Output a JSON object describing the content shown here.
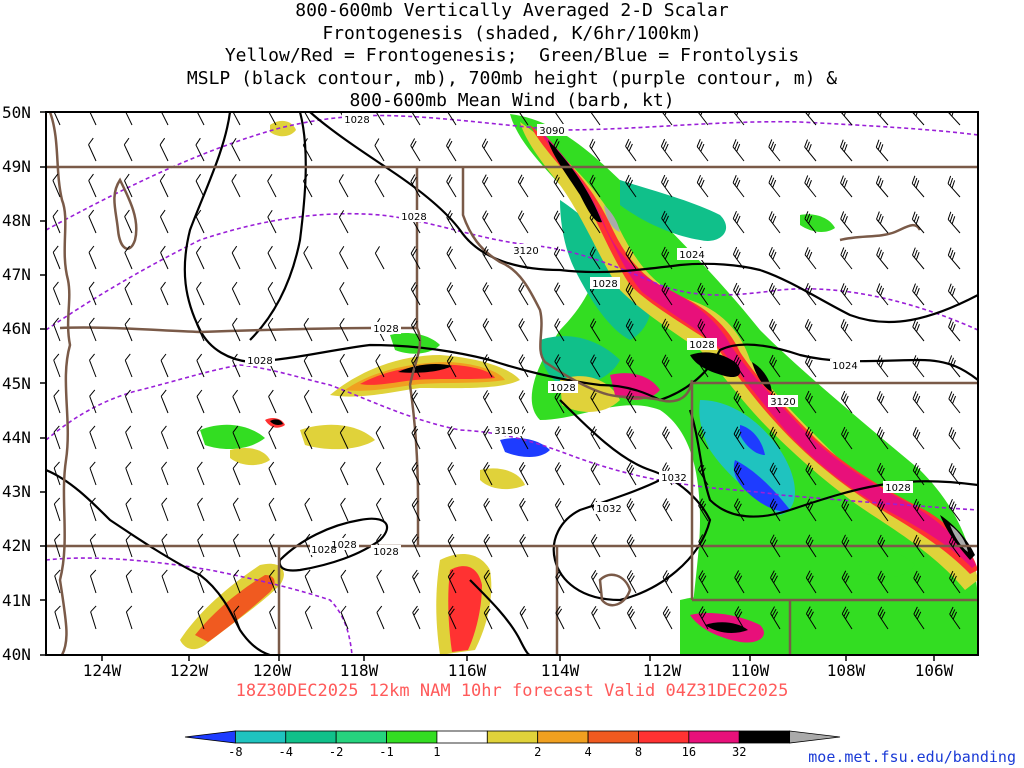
{
  "title_lines": [
    "800-600mb Vertically Averaged 2-D Scalar",
    "Frontogenesis (shaded, K/6hr/100km)",
    "Yellow/Red = Frontogenesis;  Green/Blue = Frontolysis",
    "MSLP (black contour, mb), 700mb height (purple contour, m) &",
    "800-600mb Mean Wind (barb, kt)"
  ],
  "footer": "18Z30DEC2025 12km NAM 10hr forecast Valid 04Z31DEC2025",
  "url": "moe.met.fsu.edu/banding",
  "lat_labels": [
    "50N",
    "49N",
    "48N",
    "47N",
    "46N",
    "45N",
    "44N",
    "43N",
    "42N",
    "41N",
    "40N"
  ],
  "lon_labels": [
    "124W",
    "122W",
    "120W",
    "118W",
    "116W",
    "114W",
    "112W",
    "110W",
    "108W",
    "106W"
  ],
  "mslp_labels": [
    "1028",
    "1028",
    "1028",
    "1028",
    "1028",
    "1028",
    "1024",
    "1024",
    "1028",
    "1032",
    "1032",
    "1028",
    "1028",
    "1028",
    "1028"
  ],
  "height_labels": [
    "3090",
    "3120",
    "3150",
    "3120"
  ],
  "colorbar": {
    "labels": [
      "-8",
      "-4",
      "-2",
      "-1",
      "1",
      "2",
      "4",
      "8",
      "16",
      "32"
    ],
    "colors": [
      "#1e3cff",
      "#1fc3bf",
      "#10c08a",
      "#26d37e",
      "#33dd22",
      "#ffffff",
      "#e0d23a",
      "#f0a020",
      "#f05a20",
      "#ff3232",
      "#e8107a",
      "#000000",
      "#aaaaaa"
    ]
  },
  "colors": {
    "border": "#7a5a48",
    "mslp": "#000000",
    "height": "#9a1fd8",
    "footer": "#ff5a5a",
    "url": "#1a3ad6"
  }
}
